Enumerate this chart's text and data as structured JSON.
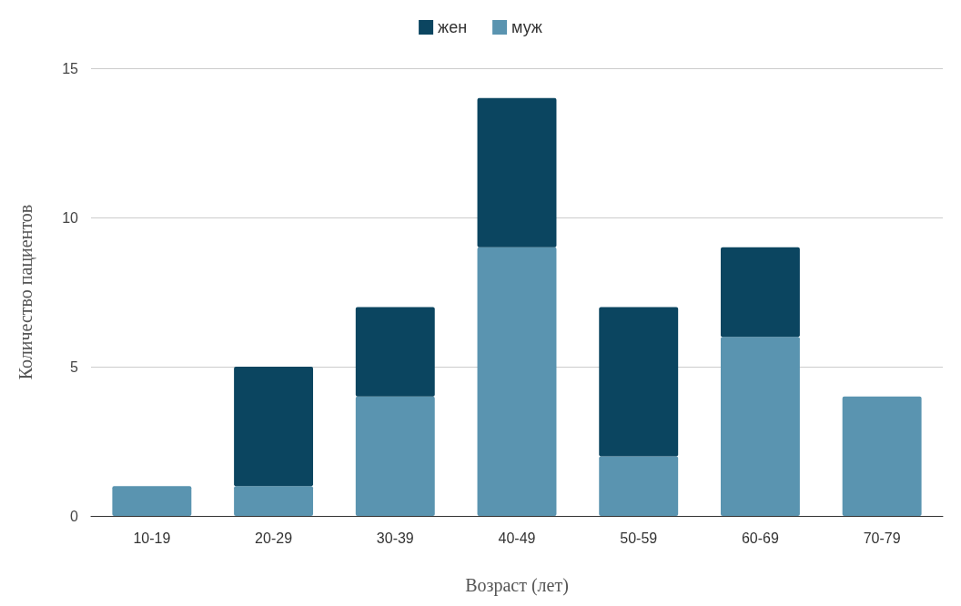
{
  "chart_data": {
    "type": "bar",
    "stacked": true,
    "xlabel": "Возраст (лет)",
    "ylabel": "Количество пациентов",
    "categories": [
      "10-19",
      "20-29",
      "30-39",
      "40-49",
      "50-59",
      "60-69",
      "70-79"
    ],
    "series": [
      {
        "name": "муж",
        "color": "#5a94b0",
        "values": [
          1,
          1,
          4,
          9,
          2,
          6,
          4
        ]
      },
      {
        "name": "жен",
        "color": "#0b4560",
        "values": [
          0,
          4,
          3,
          5,
          5,
          3,
          0
        ]
      }
    ],
    "ylim": [
      0,
      15
    ],
    "yticks": [
      0,
      5,
      10,
      15
    ],
    "grid": "y",
    "legend": "top"
  }
}
